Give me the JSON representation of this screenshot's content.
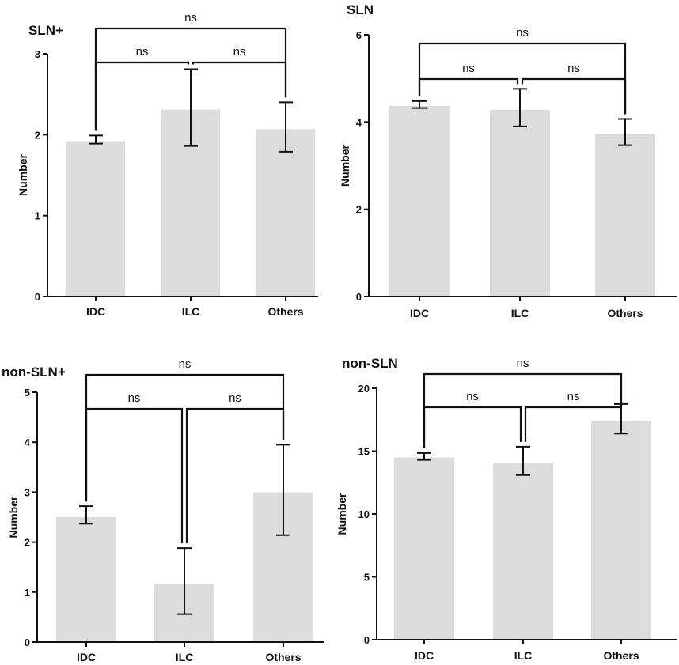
{
  "colors": {
    "bar": "#dcdcdc",
    "stroke": "#111111"
  },
  "chart_data": [
    {
      "type": "bar",
      "title": "SLN+",
      "xlabel": "",
      "ylabel": "Number",
      "categories": [
        "IDC",
        "ILC",
        "Others"
      ],
      "values": [
        1.92,
        2.31,
        2.07
      ],
      "error_low": [
        1.89,
        1.86,
        1.79
      ],
      "error_high": [
        1.99,
        2.81,
        2.4
      ],
      "ylim": [
        0,
        3
      ],
      "yticks": [
        0,
        1,
        2,
        3
      ],
      "significance": [
        {
          "from": 0,
          "to": 2,
          "label": "ns"
        },
        {
          "from": 0,
          "to": 1,
          "label": "ns"
        },
        {
          "from": 1,
          "to": 2,
          "label": "ns"
        }
      ]
    },
    {
      "type": "bar",
      "title": "SLN",
      "xlabel": "",
      "ylabel": "Number",
      "categories": [
        "IDC",
        "ILC",
        "Others"
      ],
      "values": [
        4.37,
        4.28,
        3.72
      ],
      "error_low": [
        4.32,
        3.9,
        3.47
      ],
      "error_high": [
        4.48,
        4.76,
        4.07
      ],
      "ylim": [
        0,
        6
      ],
      "yticks": [
        0,
        2,
        4,
        6
      ],
      "significance": [
        {
          "from": 0,
          "to": 2,
          "label": "ns"
        },
        {
          "from": 0,
          "to": 1,
          "label": "ns"
        },
        {
          "from": 1,
          "to": 2,
          "label": "ns"
        }
      ]
    },
    {
      "type": "bar",
      "title": "non-SLN+",
      "xlabel": "",
      "ylabel": "Number",
      "categories": [
        "IDC",
        "ILC",
        "Others"
      ],
      "values": [
        2.5,
        1.17,
        3.0
      ],
      "error_low": [
        2.37,
        0.56,
        2.14
      ],
      "error_high": [
        2.72,
        1.88,
        3.95
      ],
      "ylim": [
        0,
        5
      ],
      "yticks": [
        0,
        1,
        2,
        3,
        4,
        5
      ],
      "significance": [
        {
          "from": 0,
          "to": 2,
          "label": "ns"
        },
        {
          "from": 0,
          "to": 1,
          "label": "ns"
        },
        {
          "from": 1,
          "to": 2,
          "label": "ns"
        }
      ]
    },
    {
      "type": "bar",
      "title": "non-SLN",
      "xlabel": "",
      "ylabel": "Number",
      "categories": [
        "IDC",
        "ILC",
        "Others"
      ],
      "values": [
        14.5,
        14.05,
        17.4
      ],
      "error_low": [
        14.3,
        13.1,
        16.4
      ],
      "error_high": [
        14.85,
        15.35,
        18.75
      ],
      "ylim": [
        0,
        20
      ],
      "yticks": [
        0,
        5,
        10,
        15,
        20
      ],
      "significance": [
        {
          "from": 0,
          "to": 2,
          "label": "ns"
        },
        {
          "from": 0,
          "to": 1,
          "label": "ns"
        },
        {
          "from": 1,
          "to": 2,
          "label": "ns"
        }
      ]
    }
  ]
}
